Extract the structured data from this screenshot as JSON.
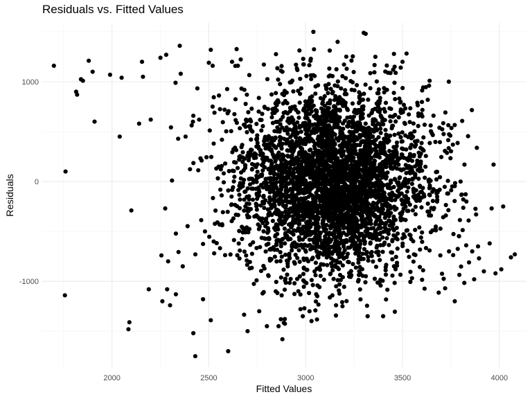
{
  "chart_data": {
    "type": "scatter",
    "title": "Residuals vs. Fitted Values",
    "xlabel": "Fitted Values",
    "ylabel": "Residuals",
    "xlim": [
      1640,
      4140
    ],
    "ylim": [
      -1860,
      1590
    ],
    "x_ticks": [
      2000,
      2500,
      3000,
      3500,
      4000
    ],
    "x_tick_labels": [
      "2000",
      "2500",
      "3000",
      "3500",
      "4000"
    ],
    "y_ticks": [
      -1000,
      0,
      1000
    ],
    "y_tick_labels": [
      "-1000",
      "0",
      "1000"
    ],
    "grid": true,
    "legend": "none",
    "point_color": "#000000",
    "n_points_approx": 4000,
    "cluster": {
      "x_mean": 3140,
      "x_sd": 240,
      "y_mean": 0,
      "y_sd": 470
    },
    "points": [
      [
        1700,
        1160
      ],
      [
        1760,
        100
      ],
      [
        1757,
        -1140
      ],
      [
        1815,
        900
      ],
      [
        1820,
        870
      ],
      [
        1840,
        1025
      ],
      [
        1850,
        1010
      ],
      [
        1880,
        1210
      ],
      [
        1900,
        1100
      ],
      [
        1910,
        600
      ],
      [
        1990,
        1070
      ],
      [
        2040,
        450
      ],
      [
        2050,
        1040
      ],
      [
        2090,
        -1410
      ],
      [
        2085,
        -1480
      ],
      [
        2100,
        -290
      ],
      [
        2140,
        580
      ],
      [
        2160,
        1050
      ],
      [
        2155,
        1200
      ],
      [
        2190,
        -1080
      ],
      [
        2200,
        620
      ],
      [
        2250,
        1240
      ],
      [
        2255,
        -740
      ],
      [
        2260,
        -1200
      ],
      [
        2275,
        -270
      ],
      [
        2280,
        1270
      ],
      [
        2285,
        -1080
      ],
      [
        2290,
        -800
      ],
      [
        2300,
        -1240
      ],
      [
        2310,
        10
      ],
      [
        2330,
        -1130
      ],
      [
        2350,
        1360
      ],
      [
        2355,
        1080
      ],
      [
        2380,
        450
      ],
      [
        2420,
        -1520
      ],
      [
        2430,
        -1750
      ],
      [
        2450,
        620
      ],
      [
        2470,
        -1180
      ],
      [
        2480,
        -500
      ],
      [
        2500,
        1190
      ],
      [
        2510,
        1320
      ],
      [
        2520,
        1160
      ],
      [
        2510,
        -1390
      ],
      [
        2600,
        -1700
      ],
      [
        2620,
        1200
      ],
      [
        2650,
        1160
      ],
      [
        2700,
        -1500
      ],
      [
        2760,
        -1300
      ],
      [
        2800,
        -1450
      ],
      [
        2860,
        -1450
      ],
      [
        2880,
        -1580
      ],
      [
        2880,
        1100
      ],
      [
        2950,
        1170
      ],
      [
        2985,
        -1350
      ],
      [
        3020,
        -1300
      ],
      [
        3040,
        1500
      ],
      [
        3165,
        1400
      ],
      [
        3190,
        -1250
      ],
      [
        3300,
        1490
      ],
      [
        3310,
        1480
      ],
      [
        3320,
        -1350
      ],
      [
        3360,
        1250
      ],
      [
        3400,
        -1350
      ],
      [
        3425,
        1090
      ],
      [
        3500,
        1200
      ],
      [
        3640,
        1010
      ],
      [
        3660,
        660
      ],
      [
        3720,
        -1070
      ],
      [
        3740,
        -700
      ],
      [
        3760,
        370
      ],
      [
        3770,
        -1200
      ],
      [
        3800,
        0
      ],
      [
        3820,
        170
      ],
      [
        3830,
        -200
      ],
      [
        3860,
        -700
      ],
      [
        3870,
        -980
      ],
      [
        3880,
        -330
      ],
      [
        3890,
        -650
      ],
      [
        3895,
        -770
      ],
      [
        3920,
        -900
      ],
      [
        3950,
        -620
      ],
      [
        3960,
        -270
      ],
      [
        3970,
        170
      ],
      [
        3980,
        -920
      ],
      [
        4010,
        -880
      ],
      [
        4020,
        -250
      ],
      [
        4060,
        -760
      ],
      [
        4080,
        -730
      ]
    ]
  }
}
